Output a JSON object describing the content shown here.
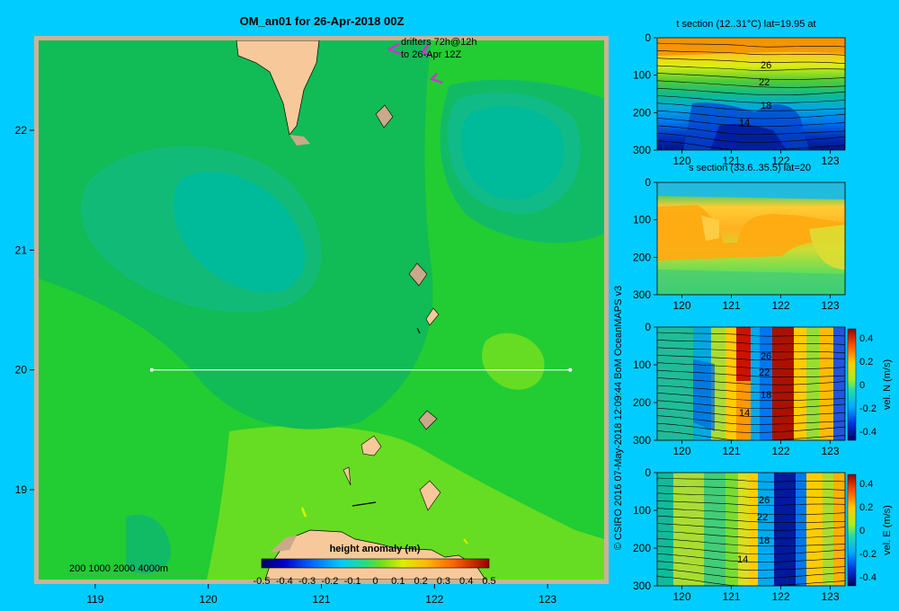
{
  "colors": {
    "background": "#00CCFF",
    "frame": "#C8B496",
    "land": "#F7C99A",
    "shallow": "#C9A98A",
    "field_base": "#22CC33",
    "field_light": "#66DD22",
    "field_mid": "#11BB55",
    "field_teal": "#11BB77",
    "field_deep": "#00BB99",
    "drifter": "#CC33CC",
    "section_line": "#FFFFFF"
  },
  "chart_data": [
    {
      "type": "heatmap",
      "title": "OM_an01 for 26-Apr-2018 00Z",
      "xlim": [
        118.5,
        123.5
      ],
      "ylim": [
        18.25,
        22.75
      ],
      "xticks": [
        119,
        120,
        121,
        122,
        123
      ],
      "yticks": [
        19,
        20,
        21,
        22
      ],
      "annotation": [
        "drifters 72h@12h",
        "to 26-Apr 12Z"
      ],
      "depth_legend": "200  1000  2000  4000m",
      "section_line": {
        "lon": [
          119.5,
          123.2
        ],
        "lat": 20
      },
      "colorbar": {
        "label": "height anomaly  (m)",
        "ticks": [
          "-0.5",
          "-0.4",
          "-0.3",
          "-0.2",
          "-0.1",
          "0",
          "0.1",
          "0.2",
          "0.3",
          "0.4",
          "0.5"
        ],
        "range": [
          -0.5,
          0.5
        ]
      }
    },
    {
      "type": "heatmap",
      "title": "t section (12..31°C) lat=19.95 at",
      "xlim": [
        119.5,
        123.3
      ],
      "ylim": [
        300,
        0
      ],
      "xticks": [
        "120",
        "121",
        "122",
        "123"
      ],
      "yticks": [
        "0",
        "100",
        "200",
        "300"
      ],
      "contour_labels": [
        "26",
        "22",
        "18",
        "14"
      ]
    },
    {
      "type": "heatmap",
      "title": "s section (33.6..35.5) lat=20",
      "xlim": [
        119.5,
        123.3
      ],
      "ylim": [
        300,
        0
      ],
      "xticks": [
        "120",
        "121",
        "122",
        "123"
      ],
      "yticks": [
        "0",
        "100",
        "200",
        "300"
      ]
    },
    {
      "type": "heatmap",
      "title": "",
      "xlim": [
        119.5,
        123.3
      ],
      "ylim": [
        300,
        0
      ],
      "xticks": [
        "120",
        "121",
        "122",
        "123"
      ],
      "yticks": [
        "0",
        "100",
        "200",
        "300"
      ],
      "contour_labels": [
        "26",
        "22",
        "18",
        "14"
      ],
      "colorbar": {
        "label": "vel. N  (m/s)",
        "ticks": [
          "0.4",
          "0.2",
          "0",
          "-0.2",
          "-0.4"
        ]
      }
    },
    {
      "type": "heatmap",
      "title": "",
      "xlim": [
        119.5,
        123.3
      ],
      "ylim": [
        300,
        0
      ],
      "xticks": [
        "120",
        "121",
        "122",
        "123"
      ],
      "yticks": [
        "0",
        "100",
        "200",
        "300"
      ],
      "contour_labels": [
        "26",
        "22",
        "18",
        "14"
      ],
      "colorbar": {
        "label": "vel. E  (m/s)",
        "ticks": [
          "0.4",
          "0.2",
          "0",
          "-0.2",
          "-0.4"
        ]
      }
    }
  ],
  "credit": "© CSIRO 2016   07-May-2018 12:09:44 BoM OceanMAPS v3"
}
